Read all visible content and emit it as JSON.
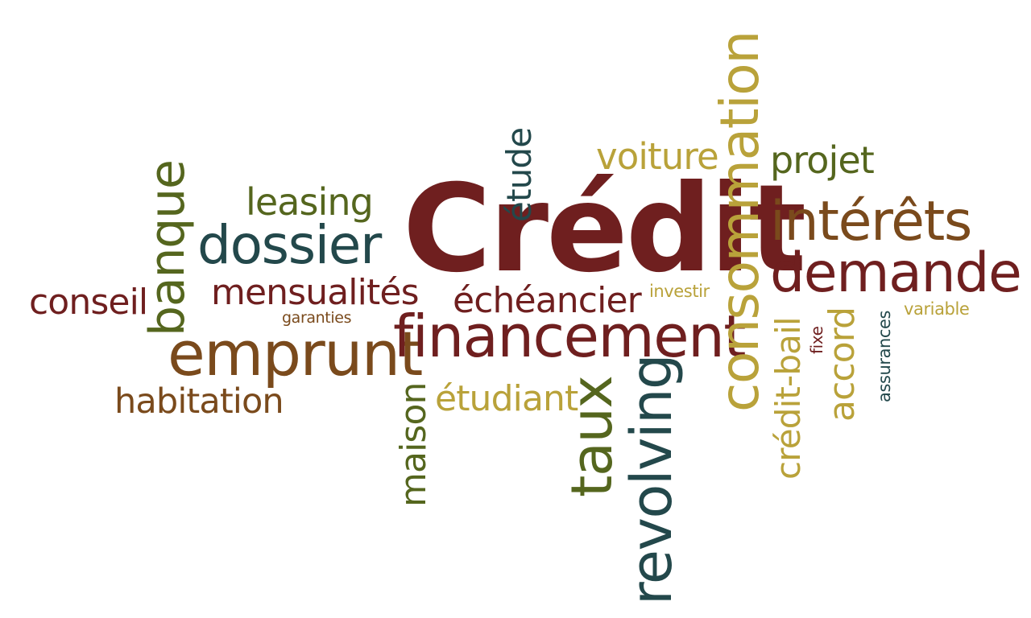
{
  "words": {
    "credit": "Crédit",
    "banque": "banque",
    "leasing": "leasing",
    "dossier": "dossier",
    "conseil": "conseil",
    "mensualites": "mensualités",
    "garanties": "garanties",
    "emprunt": "emprunt",
    "habitation": "habitation",
    "etude": "étude",
    "voiture": "voiture",
    "consommation": "consommation",
    "projet": "projet",
    "interets": "intérêts",
    "demande": "demande",
    "echeancier": "échéancier",
    "investir": "investir",
    "financement": "financement",
    "maison": "maison",
    "etudiant": "étudiant",
    "taux": "taux",
    "revolving": "revolving",
    "credit_bail": "crédit-bail",
    "fixe": "fixe",
    "accord": "accord",
    "assurances": "assurances",
    "variable": "variable"
  },
  "colors": {
    "maroon": "#6f1f1f",
    "brown": "#7a4a1c",
    "olive": "#55661e",
    "gold": "#b9a23a",
    "teal": "#23484b",
    "dark_green": "#2f4a37"
  }
}
